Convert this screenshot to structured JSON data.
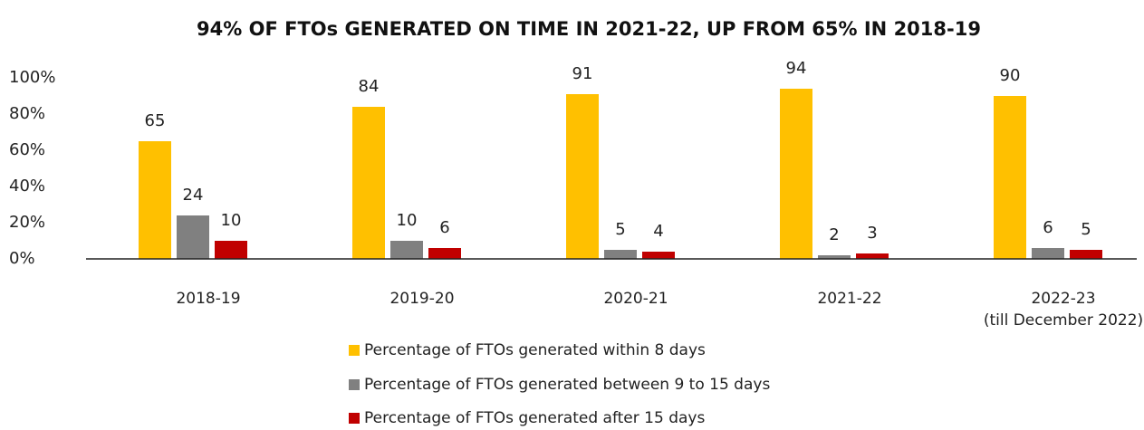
{
  "chart_data": {
    "type": "bar",
    "title": "94% OF FTOs GENERATED ON TIME IN 2021-22, UP FROM 65% IN 2018-19",
    "categories": [
      "2018-19",
      "2019-20",
      "2020-21",
      "2021-22",
      "2022-23\n(till December 2022)"
    ],
    "series": [
      {
        "name": "Percentage of FTOs generated within 8 days",
        "color": "#ffc000",
        "values": [
          65,
          84,
          91,
          94,
          90
        ]
      },
      {
        "name": "Percentage of FTOs generated between 9 to 15 days",
        "color": "#808080",
        "values": [
          24,
          10,
          5,
          2,
          6
        ]
      },
      {
        "name": "Percentage of FTOs generated after 15 days",
        "color": "#c00000",
        "values": [
          10,
          6,
          4,
          3,
          5
        ]
      }
    ],
    "ylim": [
      0,
      100
    ],
    "yticks": [
      {
        "value": 0,
        "label": "0%"
      },
      {
        "value": 20,
        "label": "20%"
      },
      {
        "value": 40,
        "label": "40%"
      },
      {
        "value": 60,
        "label": "60%"
      },
      {
        "value": 80,
        "label": "80%"
      },
      {
        "value": 100,
        "label": "100%"
      }
    ],
    "grid": false
  }
}
